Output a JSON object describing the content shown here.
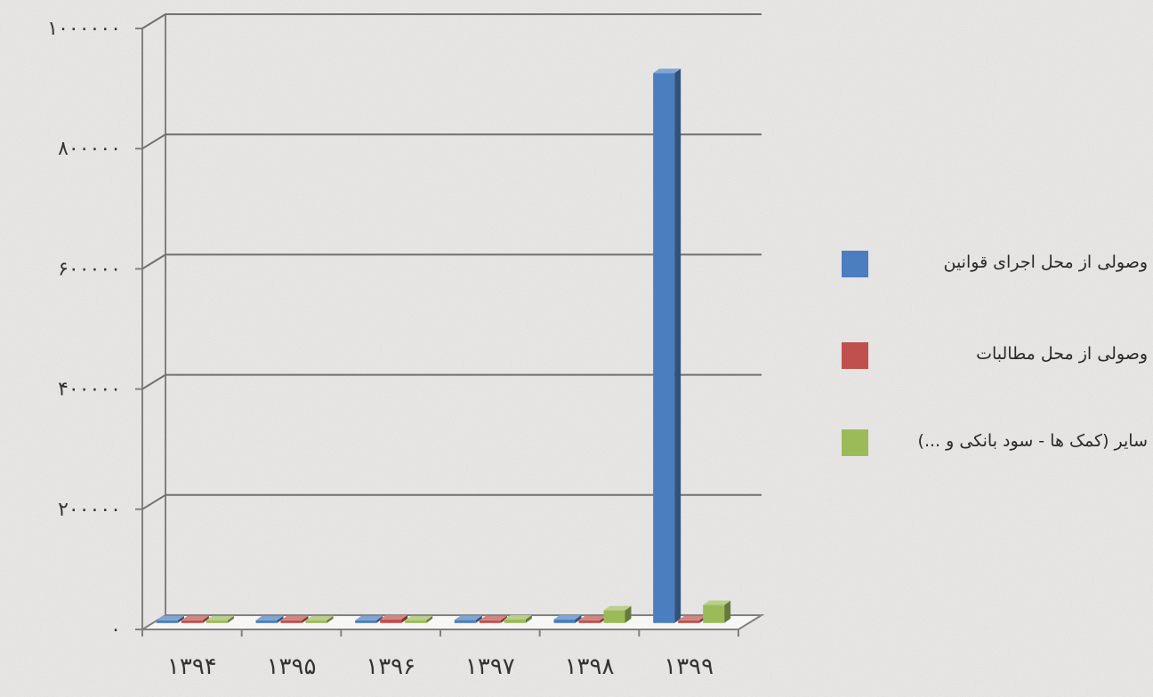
{
  "chart_data": {
    "type": "bar",
    "title": "",
    "xlabel": "",
    "ylabel": "",
    "categories": [
      "۱۳۹۴",
      "۱۳۹۵",
      "۱۳۹۶",
      "۱۳۹۷",
      "۱۳۹۸",
      "۱۳۹۹"
    ],
    "ylim": [
      0,
      1000000
    ],
    "yticks": [
      0,
      200000,
      400000,
      600000,
      800000,
      1000000
    ],
    "ytick_labels": [
      "۰",
      "۲۰۰۰۰۰",
      "۴۰۰۰۰۰",
      "۶۰۰۰۰۰",
      "۸۰۰۰۰۰",
      "۱۰۰۰۰۰۰"
    ],
    "grid": true,
    "legend_position": "right",
    "three_d": true,
    "series": [
      {
        "name": "وصولی از محل اجرای قوانین",
        "color": "#4a7ebf",
        "values": [
          1000,
          1500,
          2000,
          5000,
          6000,
          915000
        ]
      },
      {
        "name": "وصولی از محل مطالبات",
        "color": "#c0504d",
        "values": [
          1000,
          1500,
          6000,
          2000,
          2500,
          3000
        ]
      },
      {
        "name": "سایر (کمک ها - سود بانکی و ...)",
        "color": "#9bbb59",
        "values": [
          1000,
          1000,
          1500,
          6000,
          21000,
          30000
        ]
      }
    ]
  }
}
